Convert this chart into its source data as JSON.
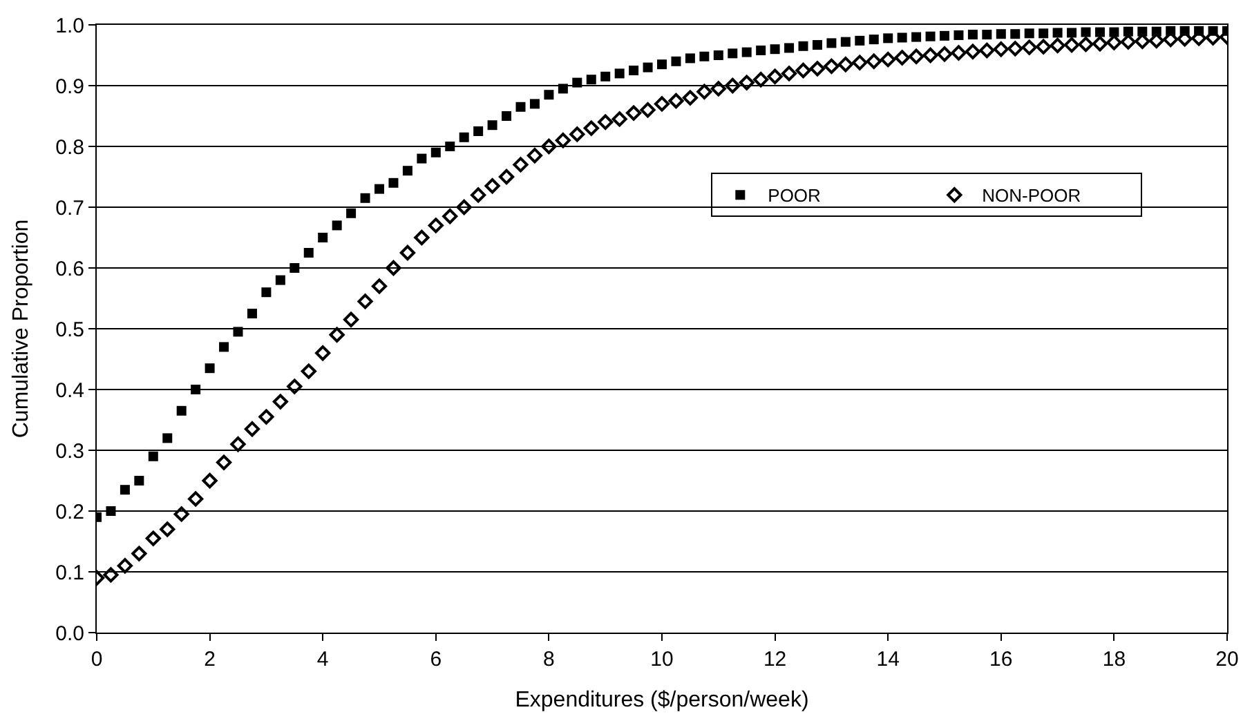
{
  "chart_data": {
    "type": "scatter",
    "xlabel": "Expenditures ($/person/week)",
    "ylabel": "Cumulative Proportion",
    "x": [
      0,
      0.25,
      0.5,
      0.75,
      1,
      1.25,
      1.5,
      1.75,
      2,
      2.25,
      2.5,
      2.75,
      3,
      3.25,
      3.5,
      3.75,
      4,
      4.25,
      4.5,
      4.75,
      5,
      5.25,
      5.5,
      5.75,
      6,
      6.25,
      6.5,
      6.75,
      7,
      7.25,
      7.5,
      7.75,
      8,
      8.25,
      8.5,
      8.75,
      9,
      9.25,
      9.5,
      9.75,
      10,
      10.25,
      10.5,
      10.75,
      11,
      11.25,
      11.5,
      11.75,
      12,
      12.25,
      12.5,
      12.75,
      13,
      13.25,
      13.5,
      13.75,
      14,
      14.25,
      14.5,
      14.75,
      15,
      15.25,
      15.5,
      15.75,
      16,
      16.25,
      16.5,
      16.75,
      17,
      17.25,
      17.5,
      17.75,
      18,
      18.25,
      18.5,
      18.75,
      19,
      19.25,
      19.5,
      19.75,
      20
    ],
    "series": [
      {
        "name": "POOR",
        "color": "#000000",
        "marker": "square",
        "values": [
          0.19,
          0.2,
          0.235,
          0.25,
          0.29,
          0.32,
          0.365,
          0.4,
          0.435,
          0.47,
          0.495,
          0.525,
          0.56,
          0.58,
          0.6,
          0.625,
          0.65,
          0.67,
          0.69,
          0.715,
          0.73,
          0.74,
          0.76,
          0.78,
          0.79,
          0.8,
          0.815,
          0.825,
          0.835,
          0.85,
          0.865,
          0.87,
          0.885,
          0.895,
          0.905,
          0.91,
          0.915,
          0.92,
          0.925,
          0.93,
          0.935,
          0.94,
          0.945,
          0.948,
          0.95,
          0.953,
          0.955,
          0.958,
          0.96,
          0.962,
          0.965,
          0.967,
          0.97,
          0.972,
          0.974,
          0.976,
          0.978,
          0.979,
          0.98,
          0.981,
          0.982,
          0.983,
          0.984,
          0.984,
          0.985,
          0.985,
          0.986,
          0.986,
          0.987,
          0.987,
          0.988,
          0.988,
          0.988,
          0.989,
          0.989,
          0.989,
          0.99,
          0.99,
          0.99,
          0.99,
          0.99
        ]
      },
      {
        "name": "NON-POOR",
        "color": "#000000",
        "marker": "diamond",
        "values": [
          0.09,
          0.095,
          0.11,
          0.13,
          0.155,
          0.17,
          0.195,
          0.22,
          0.25,
          0.28,
          0.31,
          0.335,
          0.355,
          0.38,
          0.405,
          0.43,
          0.46,
          0.49,
          0.515,
          0.545,
          0.57,
          0.6,
          0.625,
          0.65,
          0.67,
          0.685,
          0.7,
          0.72,
          0.735,
          0.75,
          0.77,
          0.785,
          0.8,
          0.81,
          0.82,
          0.83,
          0.84,
          0.845,
          0.855,
          0.86,
          0.87,
          0.875,
          0.88,
          0.89,
          0.895,
          0.9,
          0.905,
          0.91,
          0.915,
          0.92,
          0.925,
          0.928,
          0.932,
          0.935,
          0.938,
          0.94,
          0.943,
          0.946,
          0.948,
          0.95,
          0.952,
          0.954,
          0.956,
          0.958,
          0.96,
          0.961,
          0.963,
          0.964,
          0.966,
          0.967,
          0.968,
          0.969,
          0.971,
          0.972,
          0.973,
          0.974,
          0.976,
          0.977,
          0.978,
          0.979,
          0.98
        ]
      }
    ],
    "xlim": [
      0,
      20
    ],
    "xticks": [
      0,
      2,
      4,
      6,
      8,
      10,
      12,
      14,
      16,
      18,
      20
    ],
    "ylim": [
      0,
      1
    ],
    "yticks": [
      {
        "value": 0,
        "label": "0.0"
      },
      {
        "value": 0.1,
        "label": "0.1"
      },
      {
        "value": 0.2,
        "label": "0.2"
      },
      {
        "value": 0.3,
        "label": "0.3"
      },
      {
        "value": 0.4,
        "label": "0.4"
      },
      {
        "value": 0.5,
        "label": "0.5"
      },
      {
        "value": 0.6,
        "label": "0.6"
      },
      {
        "value": 0.7,
        "label": "0.7"
      },
      {
        "value": 0.8,
        "label": "0.8"
      },
      {
        "value": 0.9,
        "label": "0.9"
      },
      {
        "value": 1,
        "label": "1.0"
      }
    ],
    "grid": "y",
    "legend": "right"
  }
}
